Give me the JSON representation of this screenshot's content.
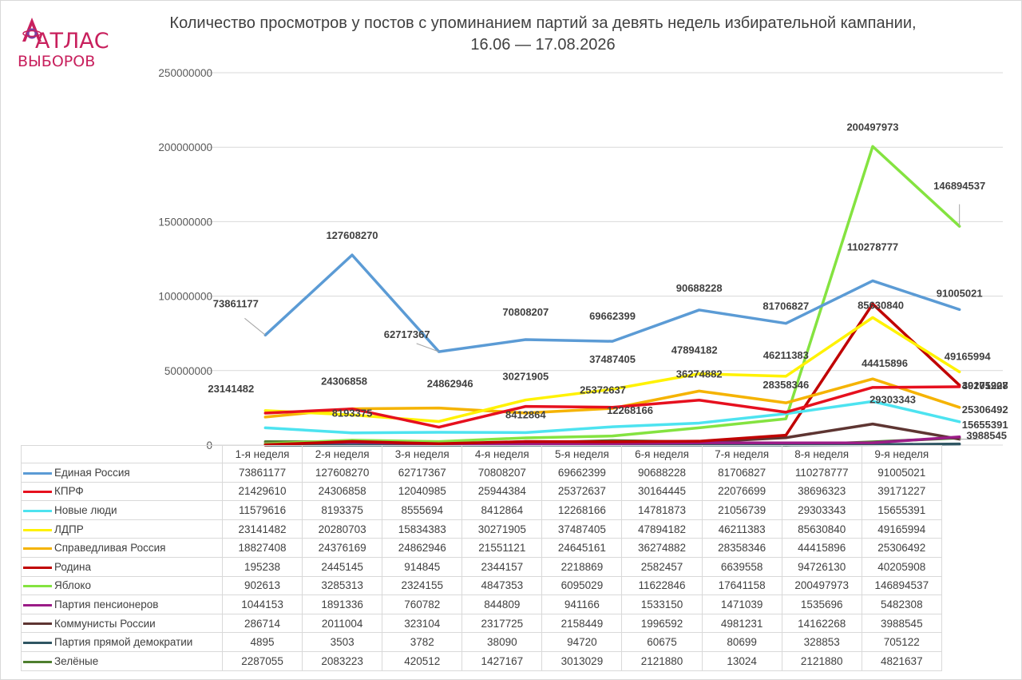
{
  "logo": {
    "line1": "АТЛАС",
    "line2": "ВЫБОРОВ",
    "color": "#c8205d"
  },
  "chart_data": {
    "type": "line",
    "title": "Количество просмотров у постов с упоминанием партий за девять недель избирательной кампании,",
    "subtitle": "16.06 — 17.08.2026",
    "categories": [
      "1-я неделя",
      "2-я неделя",
      "3-я неделя",
      "4-я неделя",
      "5-я неделя",
      "6-я неделя",
      "7-я неделя",
      "8-я неделя",
      "9-я неделя"
    ],
    "y_ticks": [
      0,
      50000000,
      100000000,
      150000000,
      200000000,
      250000000
    ],
    "y_tick_labels": [
      "0",
      "50000000",
      "100000000",
      "150000000",
      "200000000",
      "250000000"
    ],
    "ylim": [
      0,
      250000000
    ],
    "grid": true,
    "legend": "data-table",
    "series": [
      {
        "name": "Единая Россия",
        "color": "#5b9bd5",
        "values": [
          73861177,
          127608270,
          62717367,
          70808207,
          69662399,
          90688228,
          81706827,
          110278777,
          91005021
        ],
        "labels": [
          "73861177",
          "127608270",
          "62717367",
          "70808207",
          "69662399",
          "90688228",
          "81706827",
          "110278777",
          "91005021"
        ]
      },
      {
        "name": "КПРФ",
        "color": "#e6101e",
        "values": [
          21429610,
          24306858,
          12040985,
          25944384,
          25372637,
          30164445,
          22076699,
          38696323,
          39171227
        ],
        "labels": [
          "21429610",
          "24306858",
          "12040985",
          "25944384",
          "25372637",
          "30164445",
          "22076699",
          "38696323",
          "39171227"
        ]
      },
      {
        "name": "Новые люди",
        "color": "#4de3f0",
        "values": [
          11579616,
          8193375,
          8555694,
          8412864,
          12268166,
          14781873,
          21056739,
          29303343,
          15655391
        ],
        "labels": [
          "11579616",
          "8193375",
          "8555694",
          "8412864",
          "12268166",
          "14781873",
          "21056739",
          "29303343",
          "15655391"
        ]
      },
      {
        "name": "ЛДПР",
        "color": "#fff200",
        "values": [
          23141482,
          20280703,
          15834383,
          30271905,
          37487405,
          47894182,
          46211383,
          85630840,
          49165994
        ],
        "labels": [
          "23141482",
          "20280703",
          "15834383",
          "30271905",
          "37487405",
          "47894182",
          "46211383",
          "85630840",
          "49165994"
        ]
      },
      {
        "name": "Справедливая Россия",
        "color": "#f5b300",
        "values": [
          18827408,
          24376169,
          24862946,
          21551121,
          24645161,
          36274882,
          28358346,
          44415896,
          25306492
        ],
        "labels": [
          "18827408",
          "24376169",
          "24862946",
          "21551121",
          "24645161",
          "36274882",
          "28358346",
          "44415896",
          "25306492"
        ]
      },
      {
        "name": "Родина",
        "color": "#c00000",
        "values": [
          195238,
          2445145,
          914845,
          2344157,
          2218869,
          2582457,
          6639558,
          94726130,
          40205908
        ],
        "labels": [
          "195238",
          "2445145",
          "914845",
          "2344157",
          "2218869",
          "2582457",
          "6639558",
          "94726130",
          "40205908"
        ]
      },
      {
        "name": "Яблоко",
        "color": "#84e340",
        "values": [
          902613,
          3285313,
          2324155,
          4847353,
          6095029,
          11622846,
          17641158,
          200497973,
          146894537
        ],
        "labels": [
          "902613",
          "3285313",
          "2324155",
          "4847353",
          "6095029",
          "11622846",
          "17641158",
          "200497973",
          "146894537"
        ]
      },
      {
        "name": "Партия пенсионеров",
        "color": "#9b1c87",
        "values": [
          1044153,
          1891336,
          760782,
          844809,
          941166,
          1533150,
          1471039,
          1535696,
          5482308
        ],
        "labels": [
          "1044153",
          "1891336",
          "760782",
          "844809",
          "941166",
          "1533150",
          "1471039",
          "1535696",
          "5482308"
        ]
      },
      {
        "name": "Коммунисты России",
        "color": "#5e3532",
        "values": [
          286714,
          2011004,
          323104,
          2317725,
          2158449,
          1996592,
          4981231,
          14162268,
          3988545
        ],
        "labels": [
          "286714",
          "2011004",
          "323104",
          "2317725",
          "2158449",
          "1996592",
          "4981231",
          "14162268",
          "3988545"
        ]
      },
      {
        "name": "Партия прямой демократии",
        "color": "#2f5663",
        "values": [
          4895,
          3503,
          3782,
          38090,
          94720,
          60675,
          80699,
          328853,
          705122
        ],
        "labels": [
          "4895",
          "3503",
          "3782",
          "38090",
          "94720",
          "60675",
          "80699",
          "328853",
          "705122"
        ]
      },
      {
        "name": "Зелёные",
        "color": "#4e7f2e",
        "values": [
          2287055,
          2083223,
          420512,
          1427167,
          3013029,
          2121880,
          13024,
          2121880,
          4821637
        ],
        "labels": [
          "2287055",
          "2083223",
          "420512",
          "1427167",
          "3013029",
          "2121880",
          "13024",
          "2121880",
          "4821637"
        ]
      }
    ],
    "annotations": [
      {
        "series": 0,
        "point": 0,
        "text": "73861177"
      },
      {
        "series": 0,
        "point": 1,
        "text": "127608270"
      },
      {
        "series": 0,
        "point": 2,
        "text": "62717367"
      },
      {
        "series": 0,
        "point": 3,
        "text": "70808207"
      },
      {
        "series": 0,
        "point": 4,
        "text": "69662399"
      },
      {
        "series": 0,
        "point": 5,
        "text": "90688228"
      },
      {
        "series": 0,
        "point": 6,
        "text": "81706827"
      },
      {
        "series": 0,
        "point": 7,
        "text": "110278777"
      },
      {
        "series": 0,
        "point": 8,
        "text": "91005021"
      },
      {
        "series": 6,
        "point": 7,
        "text": "200497973"
      },
      {
        "series": 6,
        "point": 8,
        "text": "146894537"
      },
      {
        "series": 3,
        "point": 0,
        "text": "23141482"
      },
      {
        "series": 1,
        "point": 1,
        "text": "24306858"
      },
      {
        "series": 4,
        "point": 2,
        "text": "24862946"
      },
      {
        "series": 3,
        "point": 3,
        "text": "30271905"
      },
      {
        "series": 3,
        "point": 4,
        "text": "37487405"
      },
      {
        "series": 3,
        "point": 5,
        "text": "47894182"
      },
      {
        "series": 3,
        "point": 6,
        "text": "46211383"
      },
      {
        "series": 3,
        "point": 7,
        "text": "85630840"
      },
      {
        "series": 3,
        "point": 8,
        "text": "49165994"
      },
      {
        "series": 2,
        "point": 1,
        "text": "8193375"
      },
      {
        "series": 2,
        "point": 3,
        "text": "8412864"
      },
      {
        "series": 2,
        "point": 4,
        "text": "12268166"
      },
      {
        "series": 1,
        "point": 4,
        "text": "25372637"
      },
      {
        "series": 4,
        "point": 5,
        "text": "36274882"
      },
      {
        "series": 4,
        "point": 6,
        "text": "28358346"
      },
      {
        "series": 4,
        "point": 7,
        "text": "44415896"
      },
      {
        "series": 2,
        "point": 7,
        "text": "29303343"
      },
      {
        "series": 5,
        "point": 8,
        "text": "40205908"
      },
      {
        "series": 1,
        "point": 8,
        "text": "39171227"
      },
      {
        "series": 4,
        "point": 8,
        "text": "25306492"
      },
      {
        "series": 2,
        "point": 8,
        "text": "15655391"
      },
      {
        "series": 8,
        "point": 8,
        "text": "3988545"
      }
    ]
  }
}
